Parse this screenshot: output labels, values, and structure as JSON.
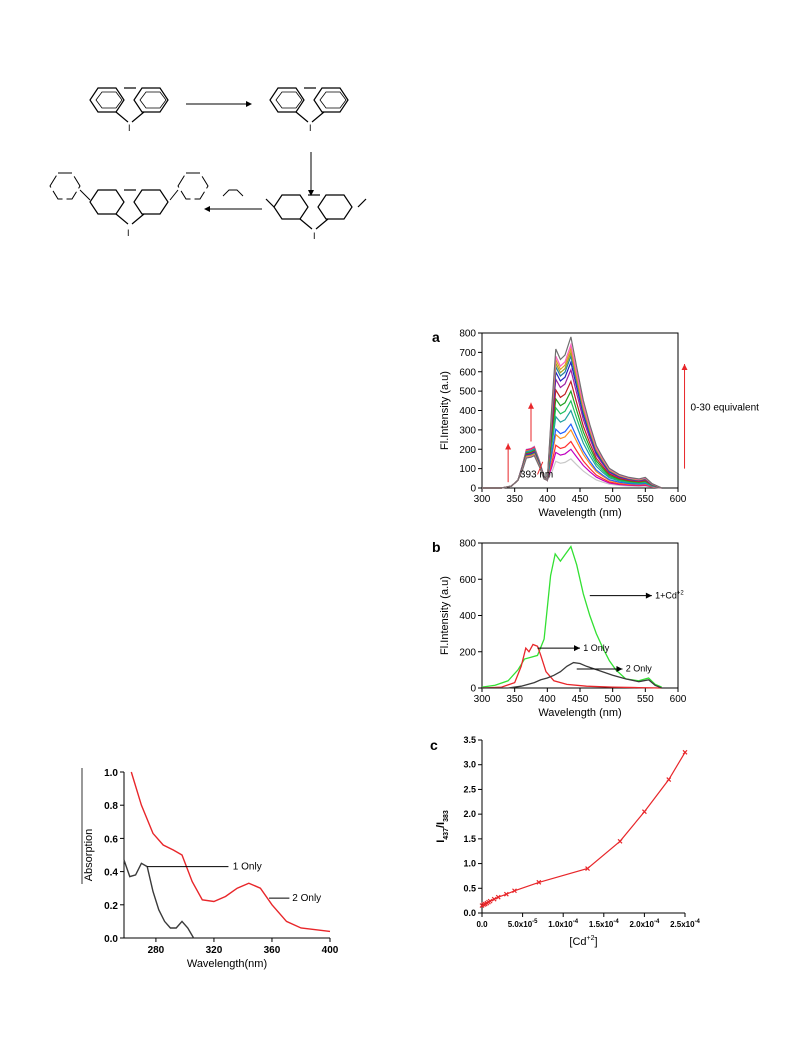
{
  "colors": {
    "red": "#e8262a",
    "green": "#33e033",
    "dark": "#3a3a3a",
    "titration": [
      "#c8c8c8",
      "#c000c0",
      "#ff3030",
      "#ff9020",
      "#2060ff",
      "#20a0a0",
      "#20c060",
      "#20a020",
      "#c02020",
      "#a020a0",
      "#2020c0",
      "#2080a0",
      "#a0a020",
      "#e0a020",
      "#ff60c0",
      "#707070"
    ]
  },
  "scheme": {
    "nitrogen_label": "I"
  },
  "panel_a": {
    "chart_data": {
      "type": "line",
      "panel_label": "a",
      "xlabel": "Wavelength (nm)",
      "ylabel": "Fl.Intensity (a.u)",
      "xlim": [
        300,
        600
      ],
      "ylim": [
        0,
        800
      ],
      "xticks": [
        300,
        350,
        400,
        450,
        500,
        550,
        600
      ],
      "yticks": [
        0,
        100,
        200,
        300,
        400,
        500,
        600,
        700,
        800
      ],
      "annotations": [
        "0-30 equivalent",
        "393 nm"
      ],
      "arrow_x": [
        340,
        375,
        610
      ],
      "peak_437_values": [
        150,
        200,
        240,
        300,
        330,
        400,
        450,
        500,
        550,
        610,
        650,
        680,
        700,
        720,
        740,
        780
      ],
      "grid": false
    }
  },
  "panel_b": {
    "chart_data": {
      "type": "line",
      "panel_label": "b",
      "xlabel": "Wavelength (nm)",
      "ylabel": "Fl.Intensity (a.u)",
      "xlim": [
        300,
        600
      ],
      "ylim": [
        0,
        800
      ],
      "xticks": [
        300,
        350,
        400,
        450,
        500,
        550,
        600
      ],
      "yticks": [
        0,
        200,
        400,
        600,
        800
      ],
      "series": [
        {
          "name": "1+Cd+2",
          "name_main": "1+Cd",
          "name_sup": "+2",
          "color": "#33e033",
          "x": [
            300,
            320,
            340,
            355,
            365,
            375,
            385,
            395,
            405,
            412,
            420,
            428,
            436,
            445,
            455,
            465,
            475,
            485,
            495,
            505,
            520,
            540,
            555,
            565,
            575
          ],
          "y": [
            5,
            15,
            40,
            100,
            160,
            170,
            180,
            270,
            620,
            740,
            700,
            740,
            780,
            680,
            520,
            400,
            300,
            220,
            150,
            100,
            50,
            40,
            55,
            20,
            5
          ]
        },
        {
          "name": "1 Only",
          "color": "#e8262a",
          "x": [
            300,
            330,
            350,
            360,
            367,
            372,
            378,
            385,
            390,
            398,
            410,
            430,
            460,
            500,
            540,
            575
          ],
          "y": [
            0,
            5,
            30,
            120,
            220,
            200,
            240,
            230,
            180,
            90,
            40,
            20,
            10,
            5,
            2,
            0
          ]
        },
        {
          "name": "2 Only",
          "color": "#3a3a3a",
          "x": [
            300,
            340,
            360,
            380,
            390,
            400,
            410,
            420,
            430,
            440,
            450,
            460,
            480,
            500,
            520,
            540,
            555,
            565,
            575
          ],
          "y": [
            0,
            0,
            10,
            30,
            45,
            55,
            70,
            90,
            120,
            140,
            135,
            120,
            95,
            70,
            50,
            35,
            45,
            15,
            0
          ]
        }
      ],
      "legend_labels": [
        "1+Cd",
        "+2",
        "1 Only",
        "2 Only"
      ],
      "grid": false
    }
  },
  "panel_c": {
    "chart_data": {
      "type": "line",
      "panel_label": "c",
      "xlabel_main": "[Cd",
      "xlabel_sup": "+2",
      "xlabel_end": "]",
      "ylabel_main": "I",
      "ylabel_sub1": "437",
      "ylabel_mid": "/I",
      "ylabel_sub2": "383",
      "xlim": [
        0,
        0.00025
      ],
      "ylim": [
        0,
        3.5
      ],
      "xtick_values": [
        0,
        5e-05,
        0.0001,
        0.00015,
        0.0002,
        0.00025
      ],
      "xtick_labels": [
        "0.0",
        "5.0x10",
        "1.0x10",
        "1.5x10",
        "2.0x10",
        "2.5x10"
      ],
      "xtick_exps": [
        "",
        "-5",
        "-4",
        "-4",
        "-4",
        "-4"
      ],
      "yticks": [
        0.0,
        0.5,
        1.0,
        1.5,
        2.0,
        2.5,
        3.0,
        3.5
      ],
      "ytick_labels": [
        "0.0",
        "0.5",
        "1.0",
        "1.5",
        "2.0",
        "2.5",
        "3.0",
        "3.5"
      ],
      "x": [
        0,
        2e-06,
        4e-06,
        6e-06,
        8e-06,
        1e-05,
        1.5e-05,
        2e-05,
        3e-05,
        4e-05,
        7e-05,
        0.00013,
        0.00017,
        0.0002,
        0.00023,
        0.00025
      ],
      "y": [
        0.15,
        0.17,
        0.18,
        0.2,
        0.22,
        0.24,
        0.28,
        0.32,
        0.38,
        0.45,
        0.62,
        0.9,
        1.45,
        2.05,
        2.7,
        3.25
      ],
      "color": "#e8262a",
      "grid": false
    }
  },
  "panel_abs": {
    "chart_data": {
      "type": "line",
      "xlabel": "Wavelength(nm)",
      "ylabel": "Absorption",
      "xlim": [
        258,
        400
      ],
      "ylim": [
        0,
        1.0
      ],
      "xticks": [
        280,
        320,
        360,
        400
      ],
      "yticks": [
        0.0,
        0.2,
        0.4,
        0.6,
        0.8,
        1.0
      ],
      "ytick_labels": [
        "0.0",
        "0.2",
        "0.4",
        "0.6",
        "0.8",
        "1.0"
      ],
      "series": [
        {
          "name": "1 Only",
          "color": "#3a3a3a",
          "x": [
            258,
            262,
            266,
            270,
            274,
            278,
            282,
            286,
            290,
            294,
            298,
            302,
            306
          ],
          "y": [
            0.47,
            0.37,
            0.38,
            0.45,
            0.43,
            0.28,
            0.17,
            0.1,
            0.06,
            0.06,
            0.1,
            0.06,
            0.0
          ]
        },
        {
          "name": "2 Only",
          "color": "#e8262a",
          "x": [
            263,
            270,
            278,
            285,
            292,
            298,
            305,
            312,
            320,
            328,
            336,
            344,
            352,
            360,
            370,
            380,
            390,
            400
          ],
          "y": [
            1.0,
            0.8,
            0.63,
            0.56,
            0.53,
            0.5,
            0.34,
            0.23,
            0.22,
            0.25,
            0.3,
            0.33,
            0.3,
            0.2,
            0.1,
            0.06,
            0.05,
            0.04
          ]
        }
      ],
      "legend_labels": [
        "1 Only",
        "2 Only"
      ],
      "grid": false
    }
  }
}
